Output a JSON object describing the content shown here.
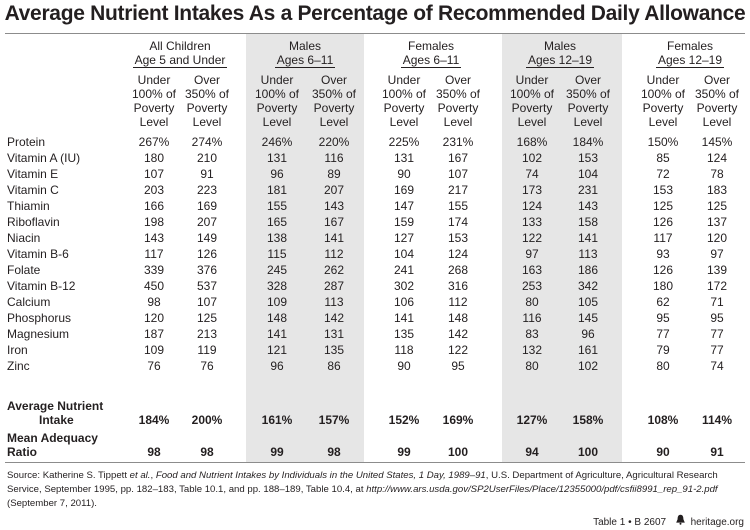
{
  "title": "Average Nutrient Intakes As a Percentage of Recommended Daily Allowance",
  "groups": [
    {
      "line1": "All Children",
      "line2": "Age 5 and Under",
      "shaded": false
    },
    {
      "line1": "Males",
      "line2": "Ages 6–11",
      "shaded": true
    },
    {
      "line1": "Females",
      "line2": "Ages 6–11",
      "shaded": false
    },
    {
      "line1": "Males",
      "line2": "Ages 12–19",
      "shaded": true
    },
    {
      "line1": "Females",
      "line2": "Ages 12–19",
      "shaded": false
    }
  ],
  "subheaders": [
    {
      "l1": "Under",
      "l2": "100% of",
      "l3": "Poverty",
      "l4": "Level"
    },
    {
      "l1": "Over",
      "l2": "350% of",
      "l3": "Poverty",
      "l4": "Level"
    }
  ],
  "rows": [
    {
      "label": "Protein",
      "values": [
        "267%",
        "274%",
        "246%",
        "220%",
        "225%",
        "231%",
        "168%",
        "184%",
        "150%",
        "145%"
      ]
    },
    {
      "label": "Vitamin A (IU)",
      "values": [
        "180",
        "210",
        "131",
        "116",
        "131",
        "167",
        "102",
        "153",
        "85",
        "124"
      ]
    },
    {
      "label": "Vitamin E",
      "values": [
        "107",
        "91",
        "96",
        "89",
        "90",
        "107",
        "74",
        "104",
        "72",
        "78"
      ]
    },
    {
      "label": "Vitamin C",
      "values": [
        "203",
        "223",
        "181",
        "207",
        "169",
        "217",
        "173",
        "231",
        "153",
        "183"
      ]
    },
    {
      "label": "Thiamin",
      "values": [
        "166",
        "169",
        "155",
        "143",
        "147",
        "155",
        "124",
        "143",
        "125",
        "125"
      ]
    },
    {
      "label": "Riboflavin",
      "values": [
        "198",
        "207",
        "165",
        "167",
        "159",
        "174",
        "133",
        "158",
        "126",
        "137"
      ]
    },
    {
      "label": "Niacin",
      "values": [
        "143",
        "149",
        "138",
        "141",
        "127",
        "153",
        "122",
        "141",
        "117",
        "120"
      ]
    },
    {
      "label": "Vitamin B-6",
      "values": [
        "117",
        "126",
        "115",
        "112",
        "104",
        "124",
        "97",
        "113",
        "93",
        "97"
      ]
    },
    {
      "label": "Folate",
      "values": [
        "339",
        "376",
        "245",
        "262",
        "241",
        "268",
        "163",
        "186",
        "126",
        "139"
      ]
    },
    {
      "label": "Vitamin B-12",
      "values": [
        "450",
        "537",
        "328",
        "287",
        "302",
        "316",
        "253",
        "342",
        "180",
        "172"
      ]
    },
    {
      "label": "Calcium",
      "values": [
        "98",
        "107",
        "109",
        "113",
        "106",
        "112",
        "80",
        "105",
        "62",
        "71"
      ]
    },
    {
      "label": "Phosphorus",
      "values": [
        "120",
        "125",
        "148",
        "142",
        "141",
        "148",
        "116",
        "145",
        "95",
        "95"
      ]
    },
    {
      "label": "Magnesium",
      "values": [
        "187",
        "213",
        "141",
        "131",
        "135",
        "142",
        "83",
        "96",
        "77",
        "77"
      ]
    },
    {
      "label": "Iron",
      "values": [
        "109",
        "119",
        "121",
        "135",
        "118",
        "122",
        "132",
        "161",
        "79",
        "77"
      ]
    },
    {
      "label": "Zinc",
      "values": [
        "76",
        "76",
        "96",
        "86",
        "90",
        "95",
        "80",
        "102",
        "80",
        "74"
      ]
    }
  ],
  "summary": [
    {
      "label1": "Average Nutrient",
      "label2": "Intake",
      "values": [
        "184%",
        "200%",
        "161%",
        "157%",
        "152%",
        "169%",
        "127%",
        "158%",
        "108%",
        "114%"
      ]
    },
    {
      "label1": "Mean Adequacy",
      "label2": "Ratio",
      "values": [
        "98",
        "98",
        "99",
        "98",
        "99",
        "100",
        "94",
        "100",
        "90",
        "91"
      ]
    }
  ],
  "source": {
    "prefix": "Source: Katherine S. Tippett ",
    "etal": "et al.",
    "sep": ", ",
    "book": "Food and Nutrient Intakes by Individuals in the United States, 1 Day, 1989–91",
    "mid": ", U.S. Department of Agriculture, Agricultural Research Service, September 1995, pp. 182–183, Table 10.1, and pp. 188–189, Table 10.4, at ",
    "url": "http://www.ars.usda.gov/SP2UserFiles/Place/12355000/pdf/csfii8991_rep_91-2.pdf",
    "suffix": " (September 7, 2011)."
  },
  "footer": {
    "table_ref": "Table 1 • B 2607",
    "site": "heritage.org",
    "icon": "liberty-bell-icon"
  },
  "colors": {
    "shade": "#e6e6e6",
    "text": "#231f20",
    "rule": "#8c8c8c"
  }
}
